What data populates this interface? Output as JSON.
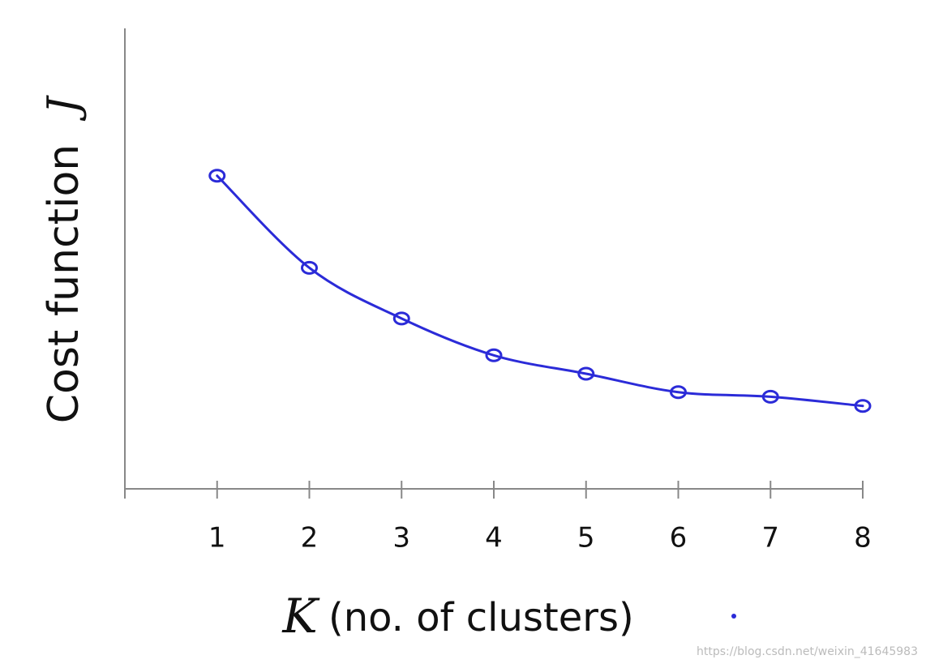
{
  "chart_data": {
    "type": "line",
    "ylabel": "Cost function",
    "ylabel_symbol": "J",
    "xlabel_symbol": "K",
    "xlabel": "(no. of clusters)",
    "watermark": "https://blog.csdn.net/weixin_41645983",
    "x": [
      1,
      2,
      3,
      4,
      5,
      6,
      7,
      8
    ],
    "values": [
      68,
      48,
      37,
      29,
      25,
      21,
      20,
      18
    ],
    "color": "#2b2bd8",
    "xlim": [
      0,
      8
    ],
    "xticks": [
      1,
      2,
      3,
      4,
      5,
      6,
      7,
      8
    ],
    "ylim": [
      0,
      100
    ]
  }
}
